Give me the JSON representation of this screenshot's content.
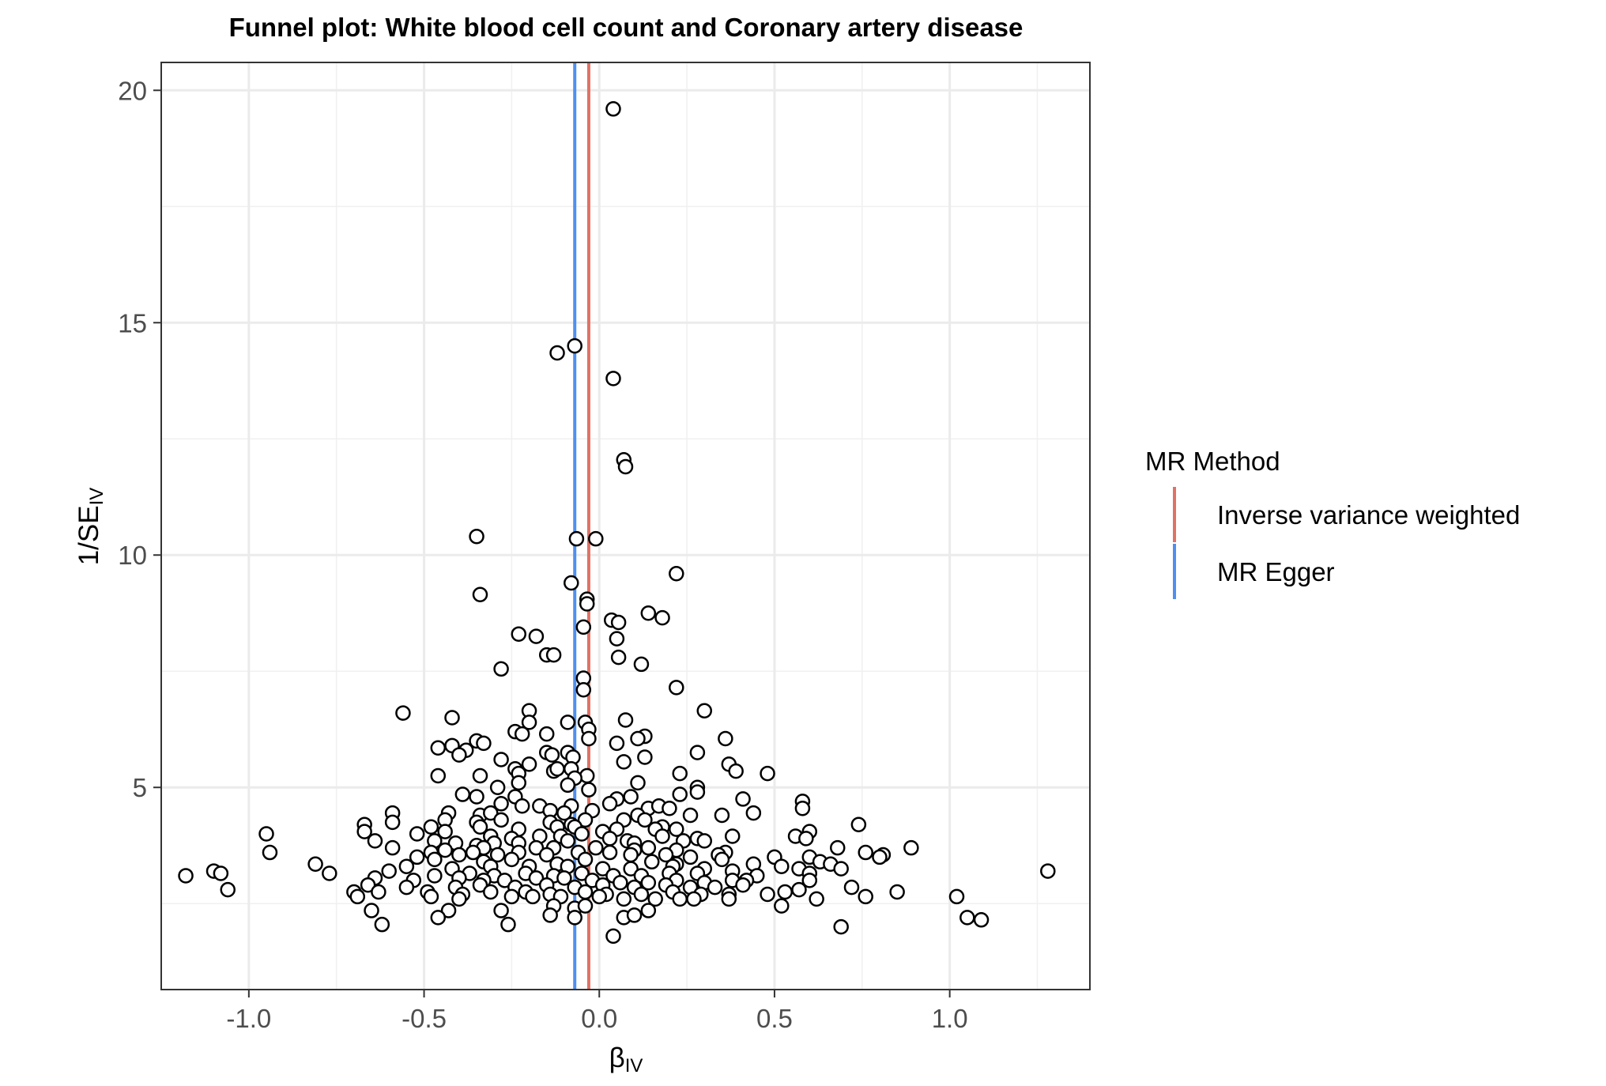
{
  "chart_data": {
    "type": "scatter",
    "title": "Funnel plot: White blood cell count and Coronary artery disease",
    "xlabel": {
      "main": "β",
      "sub": "IV"
    },
    "ylabel": {
      "main": "1/SE",
      "sub": "IV"
    },
    "xlim": [
      -1.25,
      1.4
    ],
    "ylim": [
      0.65,
      20.6
    ],
    "x_ticks": [
      {
        "value": -1.0,
        "label": "-1.0"
      },
      {
        "value": -0.5,
        "label": "-0.5"
      },
      {
        "value": 0.0,
        "label": "0.0"
      },
      {
        "value": 0.5,
        "label": "0.5"
      },
      {
        "value": 1.0,
        "label": "1.0"
      }
    ],
    "y_ticks": [
      {
        "value": 5,
        "label": "5"
      },
      {
        "value": 10,
        "label": "10"
      },
      {
        "value": 15,
        "label": "15"
      },
      {
        "value": 20,
        "label": "20"
      }
    ],
    "grid": true,
    "legend": {
      "title": "MR Method",
      "placement": "right",
      "entries": [
        {
          "label": "Inverse variance weighted",
          "color": "#E07265"
        },
        {
          "label": "MR Egger",
          "color": "#4F8FEF"
        }
      ]
    },
    "reference_lines": [
      {
        "method": "Inverse variance weighted",
        "x": -0.03,
        "color": "#E07265"
      },
      {
        "method": "MR Egger",
        "x": -0.07,
        "color": "#4F8FEF"
      }
    ],
    "points": [
      [
        0.04,
        19.6
      ],
      [
        -0.07,
        14.5
      ],
      [
        -0.12,
        14.35
      ],
      [
        0.04,
        13.8
      ],
      [
        0.07,
        12.05
      ],
      [
        0.075,
        11.9
      ],
      [
        -0.35,
        10.4
      ],
      [
        -0.065,
        10.35
      ],
      [
        -0.01,
        10.35
      ],
      [
        0.22,
        9.6
      ],
      [
        -0.08,
        9.4
      ],
      [
        -0.34,
        9.15
      ],
      [
        -0.035,
        9.05
      ],
      [
        -0.035,
        8.95
      ],
      [
        0.14,
        8.75
      ],
      [
        0.18,
        8.65
      ],
      [
        0.035,
        8.6
      ],
      [
        0.055,
        8.55
      ],
      [
        -0.045,
        8.45
      ],
      [
        -0.23,
        8.3
      ],
      [
        -0.18,
        8.25
      ],
      [
        0.05,
        8.2
      ],
      [
        -0.15,
        7.85
      ],
      [
        -0.13,
        7.85
      ],
      [
        0.055,
        7.8
      ],
      [
        0.12,
        7.65
      ],
      [
        -0.28,
        7.55
      ],
      [
        -0.045,
        7.35
      ],
      [
        -0.045,
        7.1
      ],
      [
        0.22,
        7.15
      ],
      [
        -0.56,
        6.6
      ],
      [
        -0.2,
        6.65
      ],
      [
        0.3,
        6.65
      ],
      [
        -0.42,
        6.5
      ],
      [
        0.075,
        6.45
      ],
      [
        -0.2,
        6.4
      ],
      [
        -0.09,
        6.4
      ],
      [
        -0.04,
        6.4
      ],
      [
        -0.03,
        6.25
      ],
      [
        -0.24,
        6.2
      ],
      [
        -0.22,
        6.15
      ],
      [
        -0.15,
        6.15
      ],
      [
        -0.03,
        6.05
      ],
      [
        0.13,
        6.1
      ],
      [
        0.11,
        6.05
      ],
      [
        0.36,
        6.05
      ],
      [
        -0.35,
        6.0
      ],
      [
        -0.33,
        5.95
      ],
      [
        0.05,
        5.95
      ],
      [
        -0.42,
        5.9
      ],
      [
        -0.46,
        5.85
      ],
      [
        -0.38,
        5.8
      ],
      [
        -0.4,
        5.7
      ],
      [
        -0.15,
        5.75
      ],
      [
        -0.135,
        5.7
      ],
      [
        -0.09,
        5.75
      ],
      [
        -0.075,
        5.65
      ],
      [
        0.28,
        5.75
      ],
      [
        0.13,
        5.65
      ],
      [
        -0.28,
        5.6
      ],
      [
        0.07,
        5.55
      ],
      [
        -0.2,
        5.5
      ],
      [
        0.37,
        5.5
      ],
      [
        -0.24,
        5.4
      ],
      [
        -0.23,
        5.3
      ],
      [
        -0.13,
        5.35
      ],
      [
        -0.12,
        5.4
      ],
      [
        -0.08,
        5.4
      ],
      [
        -0.035,
        5.25
      ],
      [
        0.23,
        5.3
      ],
      [
        0.48,
        5.3
      ],
      [
        0.39,
        5.35
      ],
      [
        -0.46,
        5.25
      ],
      [
        -0.34,
        5.25
      ],
      [
        -0.23,
        5.1
      ],
      [
        -0.07,
        5.2
      ],
      [
        -0.03,
        4.95
      ],
      [
        0.11,
        5.1
      ],
      [
        0.28,
        5.0
      ],
      [
        -0.29,
        5.0
      ],
      [
        -0.09,
        5.05
      ],
      [
        -0.39,
        4.85
      ],
      [
        -0.35,
        4.8
      ],
      [
        -0.24,
        4.8
      ],
      [
        0.09,
        4.8
      ],
      [
        0.05,
        4.75
      ],
      [
        0.28,
        4.9
      ],
      [
        0.23,
        4.85
      ],
      [
        0.58,
        4.7
      ],
      [
        0.41,
        4.75
      ],
      [
        -0.28,
        4.65
      ],
      [
        -0.17,
        4.6
      ],
      [
        -0.08,
        4.6
      ],
      [
        -0.02,
        4.5
      ],
      [
        0.03,
        4.65
      ],
      [
        0.14,
        4.55
      ],
      [
        0.17,
        4.6
      ],
      [
        0.2,
        4.55
      ],
      [
        -0.59,
        4.45
      ],
      [
        -0.43,
        4.45
      ],
      [
        -0.34,
        4.4
      ],
      [
        -0.31,
        4.45
      ],
      [
        -0.22,
        4.6
      ],
      [
        -0.14,
        4.5
      ],
      [
        -0.1,
        4.45
      ],
      [
        0.11,
        4.4
      ],
      [
        0.26,
        4.4
      ],
      [
        0.35,
        4.4
      ],
      [
        0.44,
        4.45
      ],
      [
        0.58,
        4.55
      ],
      [
        -0.44,
        4.3
      ],
      [
        -0.35,
        4.25
      ],
      [
        -0.28,
        4.3
      ],
      [
        -0.14,
        4.25
      ],
      [
        -0.08,
        4.2
      ],
      [
        -0.04,
        4.3
      ],
      [
        0.07,
        4.3
      ],
      [
        0.13,
        4.3
      ],
      [
        0.18,
        4.15
      ],
      [
        -0.67,
        4.2
      ],
      [
        -0.59,
        4.25
      ],
      [
        -0.48,
        4.15
      ],
      [
        -0.44,
        4.05
      ],
      [
        -0.34,
        4.15
      ],
      [
        -0.23,
        4.1
      ],
      [
        -0.12,
        4.15
      ],
      [
        -0.07,
        4.15
      ],
      [
        0.01,
        4.05
      ],
      [
        0.05,
        4.1
      ],
      [
        0.16,
        4.1
      ],
      [
        0.22,
        4.1
      ],
      [
        0.6,
        4.05
      ],
      [
        0.74,
        4.2
      ],
      [
        -0.95,
        4.0
      ],
      [
        -0.67,
        4.05
      ],
      [
        -0.52,
        4.0
      ],
      [
        -0.31,
        3.95
      ],
      [
        -0.25,
        3.9
      ],
      [
        -0.17,
        3.95
      ],
      [
        -0.11,
        3.95
      ],
      [
        -0.05,
        4.0
      ],
      [
        0.03,
        3.9
      ],
      [
        0.08,
        3.85
      ],
      [
        0.18,
        3.95
      ],
      [
        0.28,
        3.9
      ],
      [
        0.38,
        3.95
      ],
      [
        -0.64,
        3.85
      ],
      [
        -0.47,
        3.85
      ],
      [
        -0.41,
        3.8
      ],
      [
        -0.35,
        3.75
      ],
      [
        -0.3,
        3.8
      ],
      [
        -0.23,
        3.8
      ],
      [
        -0.09,
        3.85
      ],
      [
        0.1,
        3.8
      ],
      [
        0.24,
        3.85
      ],
      [
        0.3,
        3.85
      ],
      [
        0.56,
        3.95
      ],
      [
        0.59,
        3.9
      ],
      [
        -0.59,
        3.7
      ],
      [
        -0.48,
        3.6
      ],
      [
        -0.44,
        3.65
      ],
      [
        -0.33,
        3.7
      ],
      [
        -0.18,
        3.7
      ],
      [
        -0.13,
        3.7
      ],
      [
        -0.01,
        3.7
      ],
      [
        0.1,
        3.65
      ],
      [
        0.14,
        3.7
      ],
      [
        0.22,
        3.65
      ],
      [
        0.36,
        3.6
      ],
      [
        0.68,
        3.7
      ],
      [
        0.89,
        3.7
      ],
      [
        -0.94,
        3.6
      ],
      [
        -0.52,
        3.5
      ],
      [
        -0.4,
        3.55
      ],
      [
        -0.36,
        3.6
      ],
      [
        -0.29,
        3.55
      ],
      [
        -0.23,
        3.6
      ],
      [
        -0.15,
        3.55
      ],
      [
        -0.06,
        3.6
      ],
      [
        0.03,
        3.6
      ],
      [
        0.09,
        3.55
      ],
      [
        0.19,
        3.55
      ],
      [
        0.26,
        3.5
      ],
      [
        0.34,
        3.55
      ],
      [
        0.5,
        3.5
      ],
      [
        0.6,
        3.5
      ],
      [
        0.76,
        3.6
      ],
      [
        0.81,
        3.55
      ],
      [
        0.8,
        3.5
      ],
      [
        -0.47,
        3.45
      ],
      [
        -0.33,
        3.4
      ],
      [
        -0.25,
        3.45
      ],
      [
        -0.12,
        3.35
      ],
      [
        -0.04,
        3.45
      ],
      [
        0.15,
        3.4
      ],
      [
        0.22,
        3.35
      ],
      [
        0.35,
        3.45
      ],
      [
        0.44,
        3.35
      ],
      [
        0.63,
        3.4
      ],
      [
        0.66,
        3.35
      ],
      [
        -0.81,
        3.35
      ],
      [
        -0.55,
        3.3
      ],
      [
        -0.42,
        3.25
      ],
      [
        -0.31,
        3.3
      ],
      [
        -0.2,
        3.3
      ],
      [
        -0.09,
        3.3
      ],
      [
        0.01,
        3.25
      ],
      [
        0.09,
        3.25
      ],
      [
        0.21,
        3.3
      ],
      [
        0.3,
        3.25
      ],
      [
        0.38,
        3.2
      ],
      [
        0.52,
        3.3
      ],
      [
        0.57,
        3.25
      ],
      [
        0.69,
        3.25
      ],
      [
        1.28,
        3.2
      ],
      [
        -1.1,
        3.2
      ],
      [
        -1.08,
        3.15
      ],
      [
        -0.77,
        3.15
      ],
      [
        -0.6,
        3.2
      ],
      [
        -0.47,
        3.1
      ],
      [
        -0.37,
        3.15
      ],
      [
        -0.3,
        3.1
      ],
      [
        -0.21,
        3.15
      ],
      [
        -0.13,
        3.1
      ],
      [
        -0.05,
        3.15
      ],
      [
        0.04,
        3.1
      ],
      [
        0.12,
        3.1
      ],
      [
        0.2,
        3.15
      ],
      [
        0.28,
        3.15
      ],
      [
        0.45,
        3.1
      ],
      [
        0.6,
        3.15
      ],
      [
        -1.18,
        3.1
      ],
      [
        -0.64,
        3.05
      ],
      [
        -0.53,
        3.0
      ],
      [
        -0.4,
        3.05
      ],
      [
        -0.33,
        3.0
      ],
      [
        -0.27,
        3.0
      ],
      [
        -0.18,
        3.05
      ],
      [
        -0.1,
        3.05
      ],
      [
        -0.02,
        3.0
      ],
      [
        0.06,
        2.95
      ],
      [
        0.14,
        2.95
      ],
      [
        0.22,
        3.0
      ],
      [
        0.3,
        2.95
      ],
      [
        0.38,
        3.0
      ],
      [
        0.42,
        3.0
      ],
      [
        0.6,
        3.0
      ],
      [
        -0.66,
        2.9
      ],
      [
        -0.55,
        2.85
      ],
      [
        -0.41,
        2.85
      ],
      [
        -0.34,
        2.9
      ],
      [
        -0.24,
        2.85
      ],
      [
        -0.15,
        2.9
      ],
      [
        -0.07,
        2.85
      ],
      [
        0.01,
        2.9
      ],
      [
        0.1,
        2.85
      ],
      [
        0.19,
        2.9
      ],
      [
        0.26,
        2.85
      ],
      [
        0.33,
        2.85
      ],
      [
        0.41,
        2.9
      ],
      [
        0.57,
        2.8
      ],
      [
        0.72,
        2.85
      ],
      [
        0.85,
        2.75
      ],
      [
        -1.06,
        2.8
      ],
      [
        -0.7,
        2.75
      ],
      [
        -0.63,
        2.75
      ],
      [
        -0.49,
        2.75
      ],
      [
        -0.39,
        2.7
      ],
      [
        -0.31,
        2.75
      ],
      [
        -0.21,
        2.75
      ],
      [
        -0.14,
        2.7
      ],
      [
        -0.04,
        2.75
      ],
      [
        0.02,
        2.7
      ],
      [
        0.12,
        2.7
      ],
      [
        0.21,
        2.75
      ],
      [
        0.29,
        2.7
      ],
      [
        0.37,
        2.7
      ],
      [
        0.48,
        2.7
      ],
      [
        0.53,
        2.75
      ],
      [
        -0.69,
        2.65
      ],
      [
        -0.48,
        2.65
      ],
      [
        -0.4,
        2.6
      ],
      [
        -0.25,
        2.65
      ],
      [
        -0.19,
        2.65
      ],
      [
        -0.11,
        2.65
      ],
      [
        0.0,
        2.65
      ],
      [
        0.07,
        2.6
      ],
      [
        0.16,
        2.6
      ],
      [
        0.23,
        2.6
      ],
      [
        0.27,
        2.6
      ],
      [
        0.37,
        2.6
      ],
      [
        0.62,
        2.6
      ],
      [
        0.76,
        2.65
      ],
      [
        1.02,
        2.65
      ],
      [
        -0.65,
        2.35
      ],
      [
        -0.43,
        2.35
      ],
      [
        -0.28,
        2.35
      ],
      [
        -0.13,
        2.45
      ],
      [
        -0.07,
        2.4
      ],
      [
        -0.04,
        2.45
      ],
      [
        0.14,
        2.35
      ],
      [
        0.52,
        2.45
      ],
      [
        -0.14,
        2.25
      ],
      [
        -0.07,
        2.2
      ],
      [
        0.07,
        2.2
      ],
      [
        0.1,
        2.25
      ],
      [
        -0.46,
        2.2
      ],
      [
        1.05,
        2.2
      ],
      [
        1.09,
        2.15
      ],
      [
        -0.62,
        2.05
      ],
      [
        -0.26,
        2.05
      ],
      [
        0.69,
        2.0
      ],
      [
        0.04,
        1.8
      ]
    ]
  }
}
